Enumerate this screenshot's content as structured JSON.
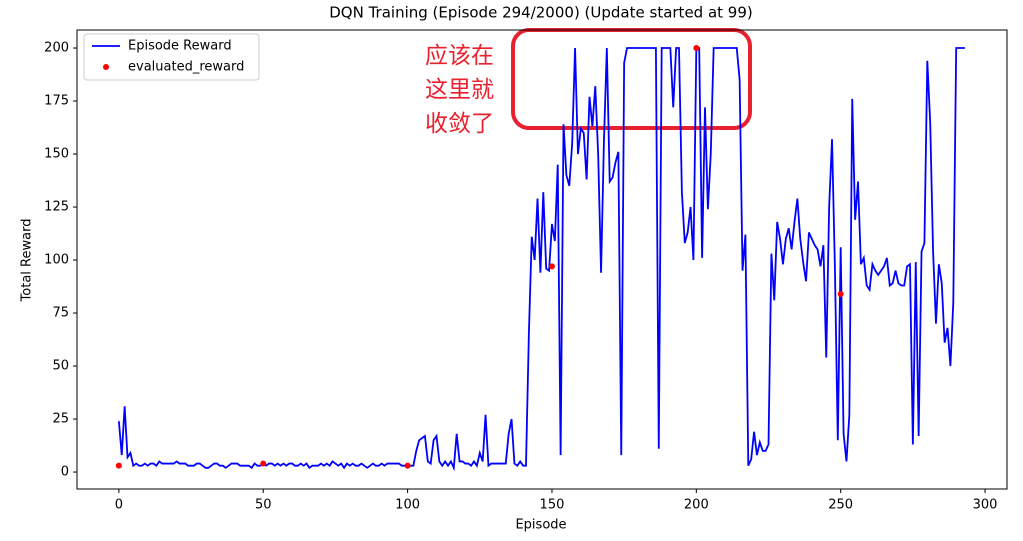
{
  "chart_data": {
    "type": "line",
    "title": "DQN Training (Episode 294/2000) (Update started at 99)",
    "x_label": "Episode",
    "y_label": "Total Reward",
    "xlim": [
      -14.5,
      307.6
    ],
    "ylim": [
      -8,
      208.5
    ],
    "xticks": [
      0,
      50,
      100,
      150,
      200,
      250,
      300
    ],
    "yticks": [
      0,
      25,
      50,
      75,
      100,
      125,
      150,
      175,
      200
    ],
    "legend": "upper left",
    "annotation": [
      "应该在",
      "这里就",
      "收敛了"
    ],
    "series": [
      {
        "name": "Episode Reward",
        "color": "#0000ff",
        "style": "line",
        "x": [
          0,
          1,
          2,
          3,
          4,
          5,
          6,
          7,
          8,
          9,
          10,
          11,
          12,
          13,
          14,
          15,
          16,
          17,
          18,
          19,
          20,
          21,
          22,
          23,
          24,
          25,
          26,
          27,
          28,
          29,
          30,
          31,
          32,
          33,
          34,
          35,
          36,
          37,
          38,
          39,
          40,
          41,
          42,
          43,
          44,
          45,
          46,
          47,
          48,
          49,
          50,
          51,
          52,
          53,
          54,
          55,
          56,
          57,
          58,
          59,
          60,
          61,
          62,
          63,
          64,
          65,
          66,
          67,
          68,
          69,
          70,
          71,
          72,
          73,
          74,
          75,
          76,
          77,
          78,
          79,
          80,
          81,
          82,
          83,
          84,
          85,
          86,
          87,
          88,
          89,
          90,
          91,
          92,
          93,
          94,
          95,
          96,
          97,
          98,
          99,
          100,
          101,
          102,
          103,
          104,
          105,
          106,
          107,
          108,
          109,
          110,
          111,
          112,
          113,
          114,
          115,
          116,
          117,
          118,
          119,
          120,
          121,
          122,
          123,
          124,
          125,
          126,
          127,
          128,
          129,
          130,
          131,
          132,
          133,
          134,
          135,
          136,
          137,
          138,
          139,
          140,
          141,
          142,
          143,
          144,
          145,
          146,
          147,
          148,
          149,
          150,
          151,
          152,
          153,
          154,
          155,
          156,
          157,
          158,
          159,
          160,
          161,
          162,
          163,
          164,
          165,
          166,
          167,
          168,
          169,
          170,
          171,
          172,
          173,
          174,
          175,
          176,
          177,
          178,
          179,
          180,
          181,
          182,
          183,
          184,
          185,
          186,
          187,
          188,
          189,
          190,
          191,
          192,
          193,
          194,
          195,
          196,
          197,
          198,
          199,
          200,
          201,
          202,
          203,
          204,
          205,
          206,
          207,
          208,
          209,
          210,
          211,
          212,
          213,
          214,
          215,
          216,
          217,
          218,
          219,
          220,
          221,
          222,
          223,
          224,
          225,
          226,
          227,
          228,
          229,
          230,
          231,
          232,
          233,
          234,
          235,
          236,
          237,
          238,
          239,
          240,
          241,
          242,
          243,
          244,
          245,
          246,
          247,
          248,
          249,
          250,
          251,
          252,
          253,
          254,
          255,
          256,
          257,
          258,
          259,
          260,
          261,
          262,
          263,
          264,
          265,
          266,
          267,
          268,
          269,
          270,
          271,
          272,
          273,
          274,
          275,
          276,
          277,
          278,
          279,
          280,
          281,
          282,
          283,
          284,
          285,
          286,
          287,
          288,
          289,
          290,
          291,
          292,
          293
        ],
        "values": [
          24,
          8,
          31,
          7,
          9,
          3,
          4,
          3,
          3,
          4,
          3,
          4,
          4,
          3,
          5,
          4,
          4,
          4,
          4,
          4,
          5,
          4,
          4,
          4,
          3,
          3,
          3,
          4,
          4,
          3,
          2,
          2,
          3,
          4,
          4,
          3,
          3,
          2,
          3,
          4,
          4,
          4,
          3,
          3,
          3,
          3,
          2,
          4,
          3,
          3,
          4,
          3,
          4,
          4,
          3,
          4,
          3,
          4,
          3,
          4,
          4,
          3,
          3,
          4,
          3,
          4,
          2,
          3,
          3,
          3,
          4,
          3,
          4,
          3,
          5,
          4,
          3,
          4,
          2,
          4,
          3,
          4,
          3,
          3,
          4,
          3,
          2,
          3,
          4,
          3,
          3,
          4,
          3,
          4,
          4,
          4,
          4,
          4,
          3,
          3,
          2,
          3,
          3,
          10,
          15,
          16,
          17,
          5,
          4,
          15,
          17,
          5,
          3,
          5,
          3,
          5,
          2,
          18,
          5,
          5,
          4,
          4,
          3,
          5,
          3,
          9,
          5,
          27,
          3,
          4,
          4,
          4,
          4,
          4,
          4,
          18,
          25,
          4,
          3,
          5,
          3,
          3,
          65,
          111,
          100,
          129,
          94,
          132,
          96,
          95,
          117,
          109,
          145,
          8,
          164,
          140,
          135,
          155,
          200,
          150,
          162,
          160,
          138,
          177,
          163,
          182,
          150,
          94,
          156,
          200,
          137,
          139,
          146,
          151,
          8,
          193,
          200,
          200,
          200,
          200,
          200,
          200,
          200,
          200,
          200,
          200,
          200,
          11,
          200,
          200,
          200,
          200,
          172,
          200,
          200,
          132,
          108,
          113,
          125,
          100,
          200,
          200,
          101,
          172,
          124,
          150,
          200,
          200,
          200,
          200,
          200,
          200,
          200,
          200,
          200,
          185,
          95,
          112,
          3,
          6,
          19,
          8,
          14,
          10,
          10,
          13,
          103,
          81,
          118,
          110,
          98,
          110,
          115,
          105,
          118,
          129,
          110,
          99,
          90,
          113,
          110,
          107,
          105,
          97,
          107,
          54,
          125,
          157,
          96,
          15,
          106,
          18,
          5,
          27,
          176,
          119,
          137,
          98,
          101,
          88,
          86,
          98,
          95,
          93,
          95,
          97,
          101,
          88,
          89,
          95,
          89,
          88,
          88,
          97,
          98,
          13,
          99,
          17,
          104,
          108,
          194,
          165,
          104,
          70,
          98,
          89,
          61,
          68,
          50,
          80,
          200,
          200,
          200,
          200
        ]
      },
      {
        "name": "evaluated_reward",
        "color": "#ff0000",
        "style": "scatter",
        "x": [
          0,
          50,
          100,
          150,
          200,
          250
        ],
        "values": [
          3,
          4,
          3,
          97,
          200,
          84
        ]
      }
    ]
  }
}
